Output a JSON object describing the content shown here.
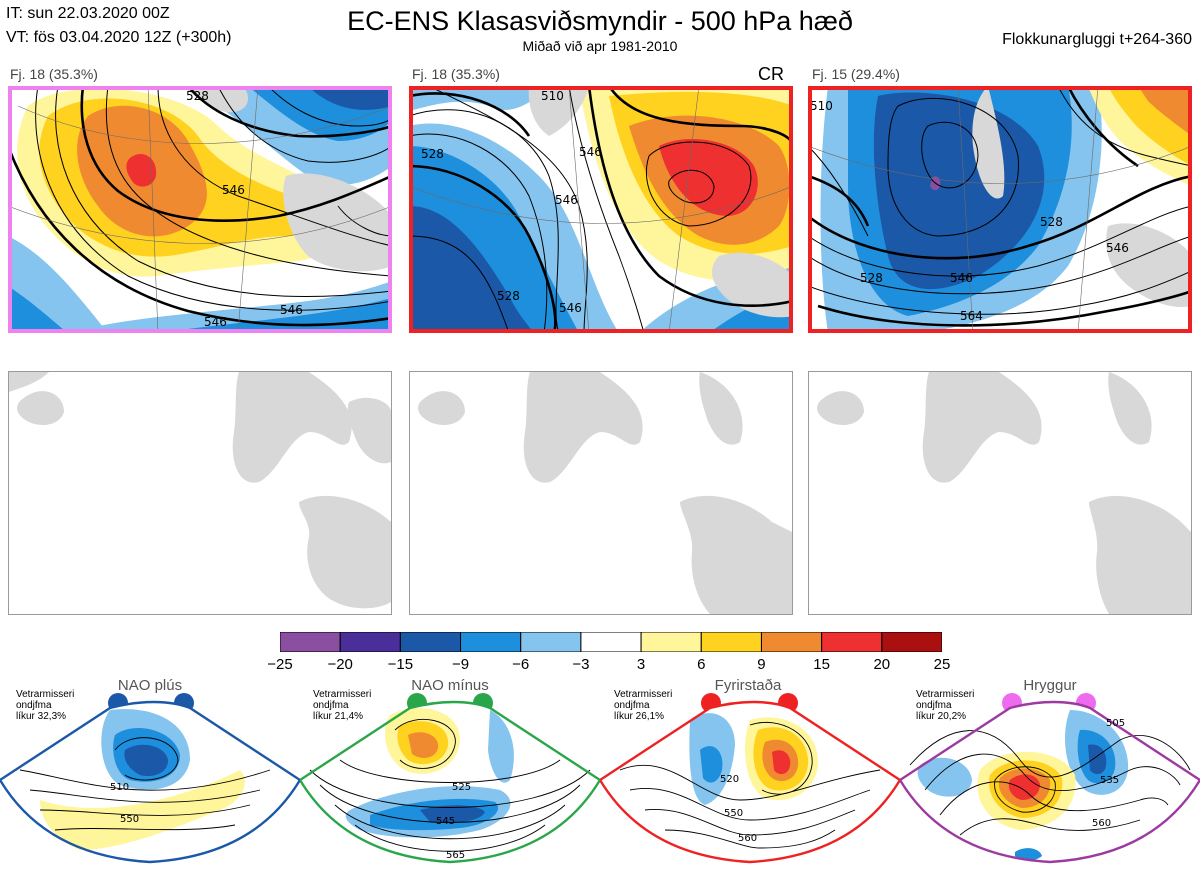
{
  "header": {
    "it_line": "IT: sun 22.03.2020 00Z",
    "vt_line": "VT: fös 03.04.2020 12Z  (+300h)",
    "title": "EC-ENS Klasasviðsmyndir - 500 hPa hæð",
    "subtitle": "Miðað við apr 1981-2010",
    "window_label": "Flokkunargluggi t+264-360"
  },
  "clusters": [
    {
      "label": "Fj. 18 (35.3%)",
      "tag": "",
      "border_color": "#ee82ee",
      "contour_labels": [
        "528",
        "546",
        "546",
        "546"
      ]
    },
    {
      "label": "Fj. 18 (35.3%)",
      "tag": "CR",
      "border_color": "#ee2222",
      "contour_labels": [
        "528",
        "546",
        "528",
        "546",
        "510",
        "546"
      ]
    },
    {
      "label": "Fj. 15 (29.4%)",
      "tag": "",
      "border_color": "#ee2222",
      "contour_labels": [
        "510",
        "528",
        "528",
        "546",
        "546",
        "564"
      ]
    }
  ],
  "colorbar": {
    "ticks": [
      "−25",
      "−20",
      "−15",
      "−9",
      "−6",
      "−3",
      "3",
      "6",
      "9",
      "15",
      "20",
      "25"
    ],
    "colors": [
      "#8a4fa0",
      "#4a2e9a",
      "#1b58a8",
      "#1e8fdc",
      "#84c4ee",
      "#ffffff",
      "#fff59a",
      "#ffd21f",
      "#f08a30",
      "#ee3030",
      "#aa1010"
    ]
  },
  "regimes": [
    {
      "name": "NAO plús",
      "note": [
        "Vetrarmisseri",
        "ondjfma",
        "líkur 32,3%"
      ],
      "color": "#1b58a8",
      "contour_labels": [
        "510",
        "550"
      ]
    },
    {
      "name": "NAO mínus",
      "note": [
        "Vetrarmisseri",
        "ondjfma",
        "líkur 21,4%"
      ],
      "color": "#2aa64a",
      "contour_labels": [
        "525",
        "545",
        "565"
      ]
    },
    {
      "name": "Fyrirstaða",
      "note": [
        "Vetrarmisseri",
        "ondjfma",
        "líkur 26,1%"
      ],
      "color": "#ee2222",
      "contour_labels": [
        "520",
        "550",
        "560"
      ]
    },
    {
      "name": "Hryggur",
      "note": [
        "Vetrarmisseri",
        "ondjfma",
        "líkur 20,2%"
      ],
      "color": "#ee6aee",
      "contour_labels": [
        "505",
        "535",
        "560"
      ]
    }
  ]
}
